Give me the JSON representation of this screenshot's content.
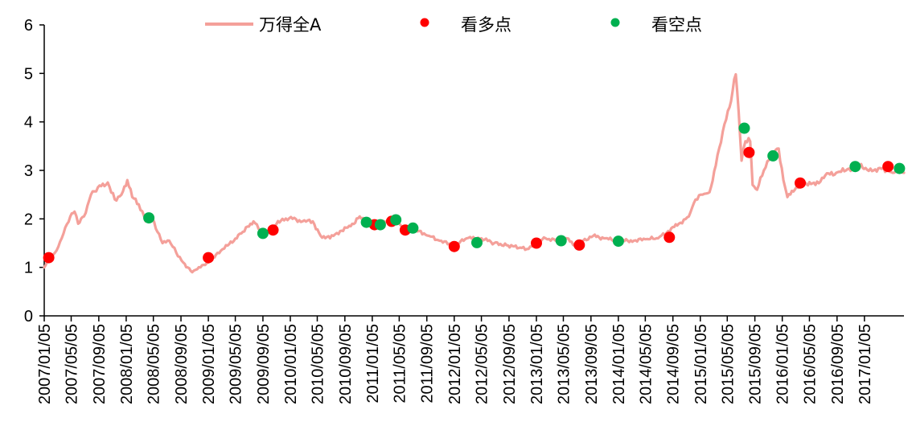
{
  "chart_data": {
    "type": "line",
    "title": "",
    "xlabel": "",
    "ylabel": "",
    "ylim": [
      0,
      6
    ],
    "yticks": [
      0,
      1,
      2,
      3,
      4,
      5,
      6
    ],
    "xticks": [
      "2007/01/05",
      "2007/05/05",
      "2007/09/05",
      "2008/01/05",
      "2008/05/05",
      "2008/09/05",
      "2009/01/05",
      "2009/05/05",
      "2009/09/05",
      "2010/01/05",
      "2010/05/05",
      "2010/09/05",
      "2011/01/05",
      "2011/05/05",
      "2011/09/05",
      "2012/01/05",
      "2012/05/05",
      "2012/09/05",
      "2013/01/05",
      "2013/05/05",
      "2013/09/05",
      "2014/01/05",
      "2014/05/05",
      "2014/09/05",
      "2015/01/05",
      "2015/05/05",
      "2015/09/05",
      "2016/01/05",
      "2016/05/05",
      "2016/09/05",
      "2017/01/05"
    ],
    "xlim": [
      "2007/01/05",
      "2017/06/30"
    ],
    "legend_position": "top",
    "series": [
      {
        "name": "万得全A",
        "kind": "line",
        "color": "#f4a09a",
        "points": [
          [
            "2007/01/05",
            1.0
          ],
          [
            "2007/02/01",
            1.2
          ],
          [
            "2007/03/01",
            1.35
          ],
          [
            "2007/04/01",
            1.7
          ],
          [
            "2007/05/01",
            2.05
          ],
          [
            "2007/05/20",
            2.15
          ],
          [
            "2007/06/05",
            1.9
          ],
          [
            "2007/07/01",
            2.05
          ],
          [
            "2007/08/01",
            2.5
          ],
          [
            "2007/09/01",
            2.65
          ],
          [
            "2007/10/15",
            2.75
          ],
          [
            "2007/11/15",
            2.4
          ],
          [
            "2007/12/15",
            2.5
          ],
          [
            "2008/01/10",
            2.8
          ],
          [
            "2008/02/01",
            2.45
          ],
          [
            "2008/03/01",
            2.3
          ],
          [
            "2008/04/01",
            1.95
          ],
          [
            "2008/05/01",
            2.0
          ],
          [
            "2008/06/15",
            1.5
          ],
          [
            "2008/07/15",
            1.55
          ],
          [
            "2008/08/15",
            1.3
          ],
          [
            "2008/09/15",
            1.1
          ],
          [
            "2008/10/25",
            0.9
          ],
          [
            "2008/12/01",
            1.0
          ],
          [
            "2009/01/05",
            1.1
          ],
          [
            "2009/02/15",
            1.3
          ],
          [
            "2009/04/01",
            1.45
          ],
          [
            "2009/06/01",
            1.7
          ],
          [
            "2009/07/25",
            1.95
          ],
          [
            "2009/09/01",
            1.7
          ],
          [
            "2009/10/15",
            1.8
          ],
          [
            "2009/12/01",
            2.0
          ],
          [
            "2010/01/15",
            2.0
          ],
          [
            "2010/03/01",
            1.95
          ],
          [
            "2010/04/15",
            1.95
          ],
          [
            "2010/05/20",
            1.65
          ],
          [
            "2010/07/01",
            1.6
          ],
          [
            "2010/08/15",
            1.75
          ],
          [
            "2010/10/01",
            1.85
          ],
          [
            "2010/11/10",
            2.05
          ],
          [
            "2010/12/15",
            1.9
          ],
          [
            "2011/02/01",
            1.9
          ],
          [
            "2011/03/15",
            1.95
          ],
          [
            "2011/04/15",
            2.0
          ],
          [
            "2011/05/15",
            1.85
          ],
          [
            "2011/06/20",
            1.75
          ],
          [
            "2011/08/01",
            1.75
          ],
          [
            "2011/09/15",
            1.65
          ],
          [
            "2011/11/01",
            1.55
          ],
          [
            "2012/01/05",
            1.45
          ],
          [
            "2012/03/01",
            1.6
          ],
          [
            "2012/05/05",
            1.6
          ],
          [
            "2012/07/01",
            1.5
          ],
          [
            "2012/09/01",
            1.45
          ],
          [
            "2012/11/01",
            1.4
          ],
          [
            "2012/12/01",
            1.38
          ],
          [
            "2013/01/15",
            1.55
          ],
          [
            "2013/02/15",
            1.6
          ],
          [
            "2013/04/01",
            1.55
          ],
          [
            "2013/05/20",
            1.6
          ],
          [
            "2013/06/25",
            1.45
          ],
          [
            "2013/08/01",
            1.55
          ],
          [
            "2013/09/15",
            1.65
          ],
          [
            "2013/11/01",
            1.6
          ],
          [
            "2014/01/05",
            1.55
          ],
          [
            "2014/03/15",
            1.55
          ],
          [
            "2014/05/05",
            1.58
          ],
          [
            "2014/07/01",
            1.6
          ],
          [
            "2014/08/15",
            1.75
          ],
          [
            "2014/10/01",
            1.9
          ],
          [
            "2014/11/15",
            2.05
          ],
          [
            "2014/12/15",
            2.4
          ],
          [
            "2015/01/15",
            2.5
          ],
          [
            "2015/02/15",
            2.55
          ],
          [
            "2015/03/15",
            3.1
          ],
          [
            "2015/04/15",
            3.8
          ],
          [
            "2015/05/15",
            4.3
          ],
          [
            "2015/06/12",
            4.98
          ],
          [
            "2015/06/25",
            4.2
          ],
          [
            "2015/07/08",
            3.2
          ],
          [
            "2015/07/25",
            3.6
          ],
          [
            "2015/08/15",
            3.6
          ],
          [
            "2015/08/26",
            2.7
          ],
          [
            "2015/09/15",
            2.6
          ],
          [
            "2015/10/15",
            3.0
          ],
          [
            "2015/11/15",
            3.3
          ],
          [
            "2015/12/20",
            3.45
          ],
          [
            "2016/01/10",
            2.8
          ],
          [
            "2016/01/28",
            2.45
          ],
          [
            "2016/03/01",
            2.6
          ],
          [
            "2016/04/15",
            2.75
          ],
          [
            "2016/06/01",
            2.7
          ],
          [
            "2016/07/15",
            2.9
          ],
          [
            "2016/09/01",
            2.95
          ],
          [
            "2016/10/15",
            3.0
          ],
          [
            "2016/11/25",
            3.1
          ],
          [
            "2017/01/10",
            3.05
          ],
          [
            "2017/02/15",
            3.0
          ],
          [
            "2017/03/15",
            3.05
          ],
          [
            "2017/04/15",
            3.0
          ],
          [
            "2017/05/10",
            2.95
          ],
          [
            "2017/06/01",
            3.0
          ],
          [
            "2017/06/30",
            2.95
          ]
        ]
      },
      {
        "name": "看多点",
        "kind": "scatter",
        "color": "#ff0000",
        "points": [
          [
            "2007/01/25",
            1.2
          ],
          [
            "2009/01/05",
            1.2
          ],
          [
            "2009/10/20",
            1.77
          ],
          [
            "2011/01/15",
            1.88
          ],
          [
            "2011/04/01",
            1.95
          ],
          [
            "2011/06/01",
            1.77
          ],
          [
            "2012/01/05",
            1.43
          ],
          [
            "2013/01/05",
            1.5
          ],
          [
            "2013/07/15",
            1.46
          ],
          [
            "2014/08/20",
            1.62
          ],
          [
            "2015/08/10",
            3.37
          ],
          [
            "2016/03/25",
            2.74
          ],
          [
            "2017/04/20",
            3.08
          ]
        ]
      },
      {
        "name": "看空点",
        "kind": "scatter",
        "color": "#00b050",
        "points": [
          [
            "2008/04/15",
            2.02
          ],
          [
            "2009/09/05",
            1.7
          ],
          [
            "2010/12/10",
            1.93
          ],
          [
            "2011/02/10",
            1.88
          ],
          [
            "2011/04/20",
            1.98
          ],
          [
            "2011/07/05",
            1.81
          ],
          [
            "2012/04/15",
            1.51
          ],
          [
            "2013/04/25",
            1.55
          ],
          [
            "2014/01/05",
            1.54
          ],
          [
            "2015/07/20",
            3.87
          ],
          [
            "2015/11/25",
            3.3
          ],
          [
            "2016/11/25",
            3.08
          ],
          [
            "2017/06/10",
            3.04
          ]
        ]
      }
    ]
  }
}
